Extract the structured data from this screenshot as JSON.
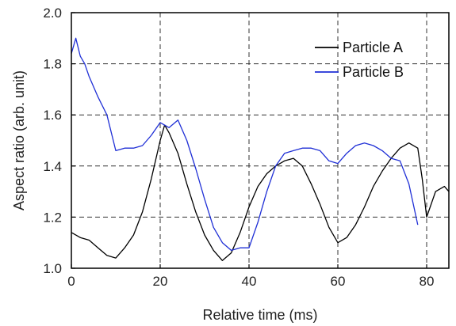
{
  "chart_data": {
    "type": "line",
    "title": "",
    "xlabel": "Relative time (ms)",
    "ylabel": "Aspect ratio (arb. unit)",
    "xlim": [
      0,
      85
    ],
    "ylim": [
      1.0,
      2.0
    ],
    "x_ticks": [
      0,
      20,
      40,
      60,
      80
    ],
    "y_ticks": [
      1.0,
      1.2,
      1.4,
      1.6,
      1.8,
      2.0
    ],
    "x_tick_labels": [
      "0",
      "20",
      "40",
      "60",
      "80"
    ],
    "y_tick_labels": [
      "1.0",
      "1.2",
      "1.4",
      "1.6",
      "1.8",
      "2.0"
    ],
    "grid": true,
    "grid_style": "dashed",
    "legend_position": "top-right",
    "colors": {
      "Particle A": "#000000",
      "Particle B": "#1f2fd6"
    },
    "series": [
      {
        "name": "Particle A",
        "x": [
          0,
          2,
          4,
          6,
          8,
          10,
          12,
          14,
          16,
          18,
          20,
          21,
          22,
          24,
          26,
          28,
          30,
          32,
          34,
          36,
          38,
          40,
          42,
          44,
          46,
          48,
          50,
          52,
          54,
          56,
          58,
          60,
          62,
          64,
          66,
          68,
          70,
          72,
          74,
          76,
          78,
          79,
          80,
          82,
          84,
          85
        ],
        "y": [
          1.14,
          1.12,
          1.11,
          1.08,
          1.05,
          1.04,
          1.08,
          1.13,
          1.22,
          1.35,
          1.5,
          1.56,
          1.53,
          1.45,
          1.33,
          1.22,
          1.13,
          1.07,
          1.03,
          1.06,
          1.14,
          1.24,
          1.32,
          1.37,
          1.4,
          1.42,
          1.43,
          1.4,
          1.33,
          1.25,
          1.16,
          1.1,
          1.12,
          1.17,
          1.24,
          1.32,
          1.38,
          1.43,
          1.47,
          1.49,
          1.47,
          1.35,
          1.2,
          1.3,
          1.32,
          1.3
        ]
      },
      {
        "name": "Particle B",
        "x": [
          0,
          1,
          2,
          3,
          4,
          6,
          8,
          10,
          12,
          14,
          16,
          18,
          20,
          22,
          24,
          26,
          28,
          30,
          32,
          34,
          36,
          38,
          40,
          42,
          44,
          46,
          48,
          50,
          52,
          54,
          56,
          58,
          60,
          62,
          64,
          66,
          68,
          70,
          72,
          74,
          76,
          77,
          78
        ],
        "y": [
          1.84,
          1.9,
          1.83,
          1.8,
          1.75,
          1.67,
          1.6,
          1.46,
          1.47,
          1.47,
          1.48,
          1.52,
          1.57,
          1.55,
          1.58,
          1.5,
          1.39,
          1.27,
          1.16,
          1.1,
          1.07,
          1.08,
          1.08,
          1.18,
          1.3,
          1.4,
          1.45,
          1.46,
          1.47,
          1.47,
          1.46,
          1.42,
          1.41,
          1.45,
          1.48,
          1.49,
          1.48,
          1.46,
          1.43,
          1.42,
          1.33,
          1.25,
          1.17
        ]
      }
    ]
  }
}
